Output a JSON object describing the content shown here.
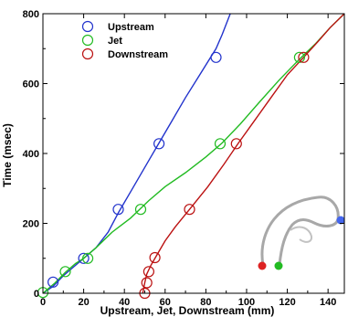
{
  "chart_data": {
    "type": "line",
    "title": "",
    "xlabel": "Upstream, Jet, Downstream (mm)",
    "ylabel": "Time (msec)",
    "xlim": [
      0,
      148
    ],
    "ylim": [
      0,
      800
    ],
    "x_ticks": [
      0,
      20,
      40,
      60,
      80,
      100,
      120,
      140
    ],
    "x_tick_labels": [
      "0",
      "20",
      "40",
      "60",
      "80",
      "100",
      "120",
      "140"
    ],
    "y_ticks": [
      0,
      200,
      400,
      600,
      800
    ],
    "y_tick_labels": [
      "0",
      "200",
      "400",
      "600",
      "800"
    ],
    "legend_position": "top-left",
    "grid": false,
    "series": [
      {
        "name": "Upstream",
        "color": "#2233cc",
        "markers": [
          [
            5,
            32
          ],
          [
            20,
            100
          ],
          [
            37,
            240
          ],
          [
            57,
            428
          ],
          [
            85,
            675
          ]
        ],
        "line": [
          [
            0,
            0
          ],
          [
            5,
            20
          ],
          [
            10,
            50
          ],
          [
            16,
            80
          ],
          [
            20,
            100
          ],
          [
            26,
            130
          ],
          [
            32,
            175
          ],
          [
            37,
            230
          ],
          [
            44,
            300
          ],
          [
            52,
            380
          ],
          [
            57,
            430
          ],
          [
            63,
            490
          ],
          [
            70,
            560
          ],
          [
            77,
            625
          ],
          [
            85,
            700
          ],
          [
            88,
            740
          ],
          [
            92,
            800
          ]
        ]
      },
      {
        "name": "Jet",
        "color": "#22bb22",
        "markers": [
          [
            0,
            2
          ],
          [
            11,
            62
          ],
          [
            22,
            100
          ],
          [
            48,
            240
          ],
          [
            87,
            428
          ],
          [
            126,
            675
          ]
        ],
        "line": [
          [
            0,
            0
          ],
          [
            6,
            30
          ],
          [
            11,
            60
          ],
          [
            16,
            85
          ],
          [
            20,
            100
          ],
          [
            26,
            130
          ],
          [
            34,
            175
          ],
          [
            43,
            215
          ],
          [
            52,
            265
          ],
          [
            60,
            305
          ],
          [
            70,
            345
          ],
          [
            80,
            390
          ],
          [
            88,
            430
          ],
          [
            97,
            485
          ],
          [
            106,
            545
          ],
          [
            116,
            610
          ],
          [
            126,
            670
          ],
          [
            134,
            715
          ],
          [
            141,
            760
          ],
          [
            148,
            800
          ]
        ]
      },
      {
        "name": "Downstream",
        "color": "#bb1111",
        "markers": [
          [
            50,
            0
          ],
          [
            51,
            30
          ],
          [
            52,
            62
          ],
          [
            55,
            102
          ],
          [
            72,
            240
          ],
          [
            95,
            428
          ],
          [
            128,
            675
          ]
        ],
        "line": [
          [
            49,
            0
          ],
          [
            50,
            30
          ],
          [
            51,
            55
          ],
          [
            53,
            80
          ],
          [
            56,
            110
          ],
          [
            60,
            150
          ],
          [
            65,
            190
          ],
          [
            72,
            240
          ],
          [
            81,
            305
          ],
          [
            89,
            370
          ],
          [
            96,
            430
          ],
          [
            104,
            495
          ],
          [
            112,
            560
          ],
          [
            120,
            625
          ],
          [
            128,
            675
          ],
          [
            135,
            720
          ],
          [
            141,
            760
          ],
          [
            148,
            800
          ]
        ]
      }
    ]
  }
}
